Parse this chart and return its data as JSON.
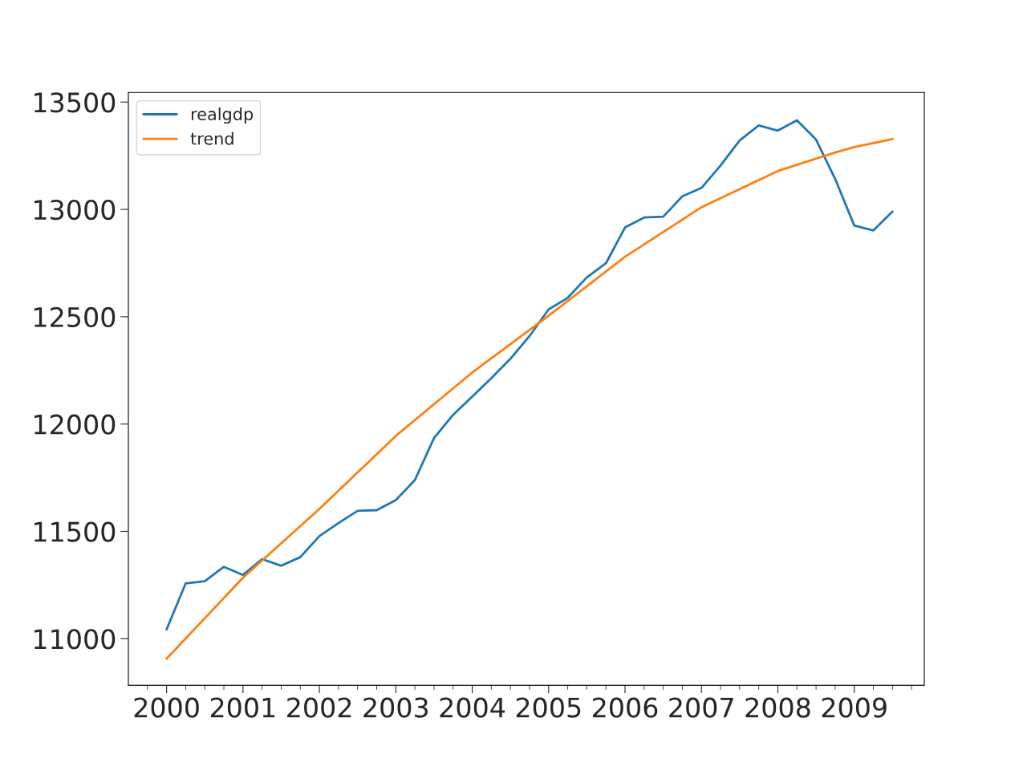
{
  "chart_data": {
    "type": "line",
    "x": [
      "2000-01",
      "2000-04",
      "2000-07",
      "2000-10",
      "2001-01",
      "2001-04",
      "2001-07",
      "2001-10",
      "2002-01",
      "2002-04",
      "2002-07",
      "2002-10",
      "2003-01",
      "2003-04",
      "2003-07",
      "2003-10",
      "2004-01",
      "2004-04",
      "2004-07",
      "2004-10",
      "2005-01",
      "2005-04",
      "2005-07",
      "2005-10",
      "2006-01",
      "2006-04",
      "2006-07",
      "2006-10",
      "2007-01",
      "2007-04",
      "2007-07",
      "2007-10",
      "2008-01",
      "2008-04",
      "2008-07",
      "2008-10",
      "2009-01",
      "2009-04",
      "2009-07"
    ],
    "series": [
      {
        "name": "realgdp",
        "color": "#1f77b4",
        "values": [
          11043,
          11258,
          11268,
          11335,
          11297,
          11371,
          11340,
          11380,
          11478,
          11539,
          11596,
          11599,
          11646,
          11739,
          11935,
          12043,
          12128,
          12214,
          12304,
          12410,
          12534,
          12588,
          12683,
          12749,
          12916,
          12962,
          12966,
          13061,
          13100,
          13204,
          13321,
          13391,
          13367,
          13415,
          13325,
          13142,
          12925,
          12902,
          12990
        ]
      },
      {
        "name": "trend",
        "color": "#ff7f0e",
        "x": [
          "2000-01",
          "2001-01",
          "2002-01",
          "2003-01",
          "2004-01",
          "2005-01",
          "2006-01",
          "2007-01",
          "2008-01",
          "2008-10",
          "2009-01",
          "2009-07"
        ],
        "values": [
          10907,
          11284,
          11605,
          11945,
          12240,
          12505,
          12779,
          13010,
          13179,
          13265,
          13290,
          13328
        ]
      }
    ],
    "xlim": [
      "1999-07",
      "2009-12"
    ],
    "xticks": [
      {
        "value": "2000-01",
        "label": "2000"
      },
      {
        "value": "2001-01",
        "label": "2001"
      },
      {
        "value": "2002-01",
        "label": "2002"
      },
      {
        "value": "2003-01",
        "label": "2003"
      },
      {
        "value": "2004-01",
        "label": "2004"
      },
      {
        "value": "2005-01",
        "label": "2005"
      },
      {
        "value": "2006-01",
        "label": "2006"
      },
      {
        "value": "2007-01",
        "label": "2007"
      },
      {
        "value": "2008-01",
        "label": "2008"
      },
      {
        "value": "2009-01",
        "label": "2009"
      },
      {
        "value": "1999-10",
        "label": null
      },
      {
        "value": "2000-04",
        "label": null
      },
      {
        "value": "2000-07",
        "label": null
      },
      {
        "value": "2000-10",
        "label": null
      },
      {
        "value": "2001-04",
        "label": null
      },
      {
        "value": "2001-07",
        "label": null
      },
      {
        "value": "2001-10",
        "label": null
      },
      {
        "value": "2002-04",
        "label": null
      },
      {
        "value": "2002-07",
        "label": null
      },
      {
        "value": "2002-10",
        "label": null
      },
      {
        "value": "2003-04",
        "label": null
      },
      {
        "value": "2003-07",
        "label": null
      },
      {
        "value": "2003-10",
        "label": null
      },
      {
        "value": "2004-04",
        "label": null
      },
      {
        "value": "2004-07",
        "label": null
      },
      {
        "value": "2004-10",
        "label": null
      },
      {
        "value": "2005-04",
        "label": null
      },
      {
        "value": "2005-07",
        "label": null
      },
      {
        "value": "2005-10",
        "label": null
      },
      {
        "value": "2006-04",
        "label": null
      },
      {
        "value": "2006-07",
        "label": null
      },
      {
        "value": "2006-10",
        "label": null
      },
      {
        "value": "2007-04",
        "label": null
      },
      {
        "value": "2007-07",
        "label": null
      },
      {
        "value": "2007-10",
        "label": null
      },
      {
        "value": "2008-04",
        "label": null
      },
      {
        "value": "2008-07",
        "label": null
      },
      {
        "value": "2008-10",
        "label": null
      },
      {
        "value": "2009-04",
        "label": null
      },
      {
        "value": "2009-07",
        "label": null
      },
      {
        "value": "2009-10",
        "label": null
      }
    ],
    "ylim": [
      10783,
      13545
    ],
    "yticks": [
      11000,
      11500,
      12000,
      12500,
      13000,
      13500
    ],
    "grid": false,
    "legend": "top left"
  }
}
